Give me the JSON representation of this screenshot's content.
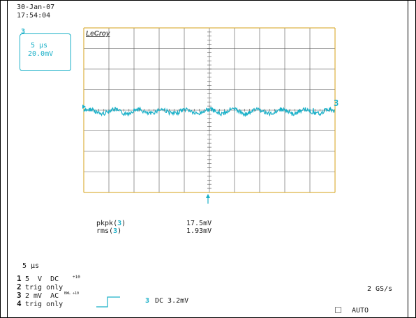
{
  "header": {
    "date": "30-Jan-07",
    "time": "17:54:04"
  },
  "channel_box": {
    "channel": "3",
    "timebase": "5 µs",
    "voltage": "20.0mV"
  },
  "logo": "LeCroy",
  "trace_marker": "3",
  "measurements": [
    {
      "label": "pkpk(",
      "channel": "3",
      "close": ")",
      "value": "17.5mV"
    },
    {
      "label": "rms(",
      "channel": "3",
      "close": ")",
      "value": "1.93mV"
    }
  ],
  "timebase_readout": "5 µs",
  "channels": [
    {
      "num": "1",
      "text": "5  V  DC",
      "suffix": "÷10"
    },
    {
      "num": "2",
      "text": "trig only",
      "suffix": ""
    },
    {
      "num": "3",
      "text": "2 mV  AC",
      "suffix": "BWL ÷10"
    },
    {
      "num": "4",
      "text": "trig only",
      "suffix": ""
    }
  ],
  "trigger": {
    "channel": "3",
    "text": "DC 3.2mV"
  },
  "sample_rate": "2 GS/s",
  "trigger_mode": "AUTO",
  "colors": {
    "trace": "#1ab0c8",
    "grid_border": "#d4a017",
    "grid": "#555555"
  }
}
